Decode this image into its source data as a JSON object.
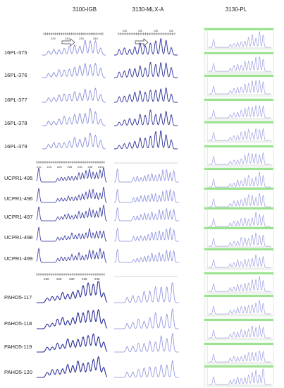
{
  "columns": [
    "3100-IGB",
    "3130-MLX-A",
    "3130-PL"
  ],
  "groups": [
    {
      "rows": [
        "16PL-375",
        "16PL-376",
        "16PL-377",
        "16PL-378",
        "16PL-379"
      ]
    },
    {
      "rows": [
        "UCPR1-495",
        "UCPR1-496",
        "UCPR1-497",
        "UCPR1-498",
        "UCPR1-499"
      ]
    },
    {
      "rows": [
        "PAHO5-117",
        "PAHO5-118",
        "PAHO5-119",
        "PAHO5-120"
      ]
    }
  ],
  "scales": {
    "igb_group1": [
      "225",
      "230",
      "235",
      "240"
    ],
    "mlx_group1": [
      "225",
      "230",
      "235",
      "240"
    ],
    "igb_group2": [
      "210",
      "215",
      "220",
      "225",
      "230",
      "235",
      "240"
    ],
    "igb_group3": [
      "220",
      "225",
      "230",
      "235",
      "240"
    ]
  },
  "colors": {
    "trace_dark": "#2b2f9a",
    "trace_light": "#8a8fdb",
    "header_green": "#9be38f"
  }
}
